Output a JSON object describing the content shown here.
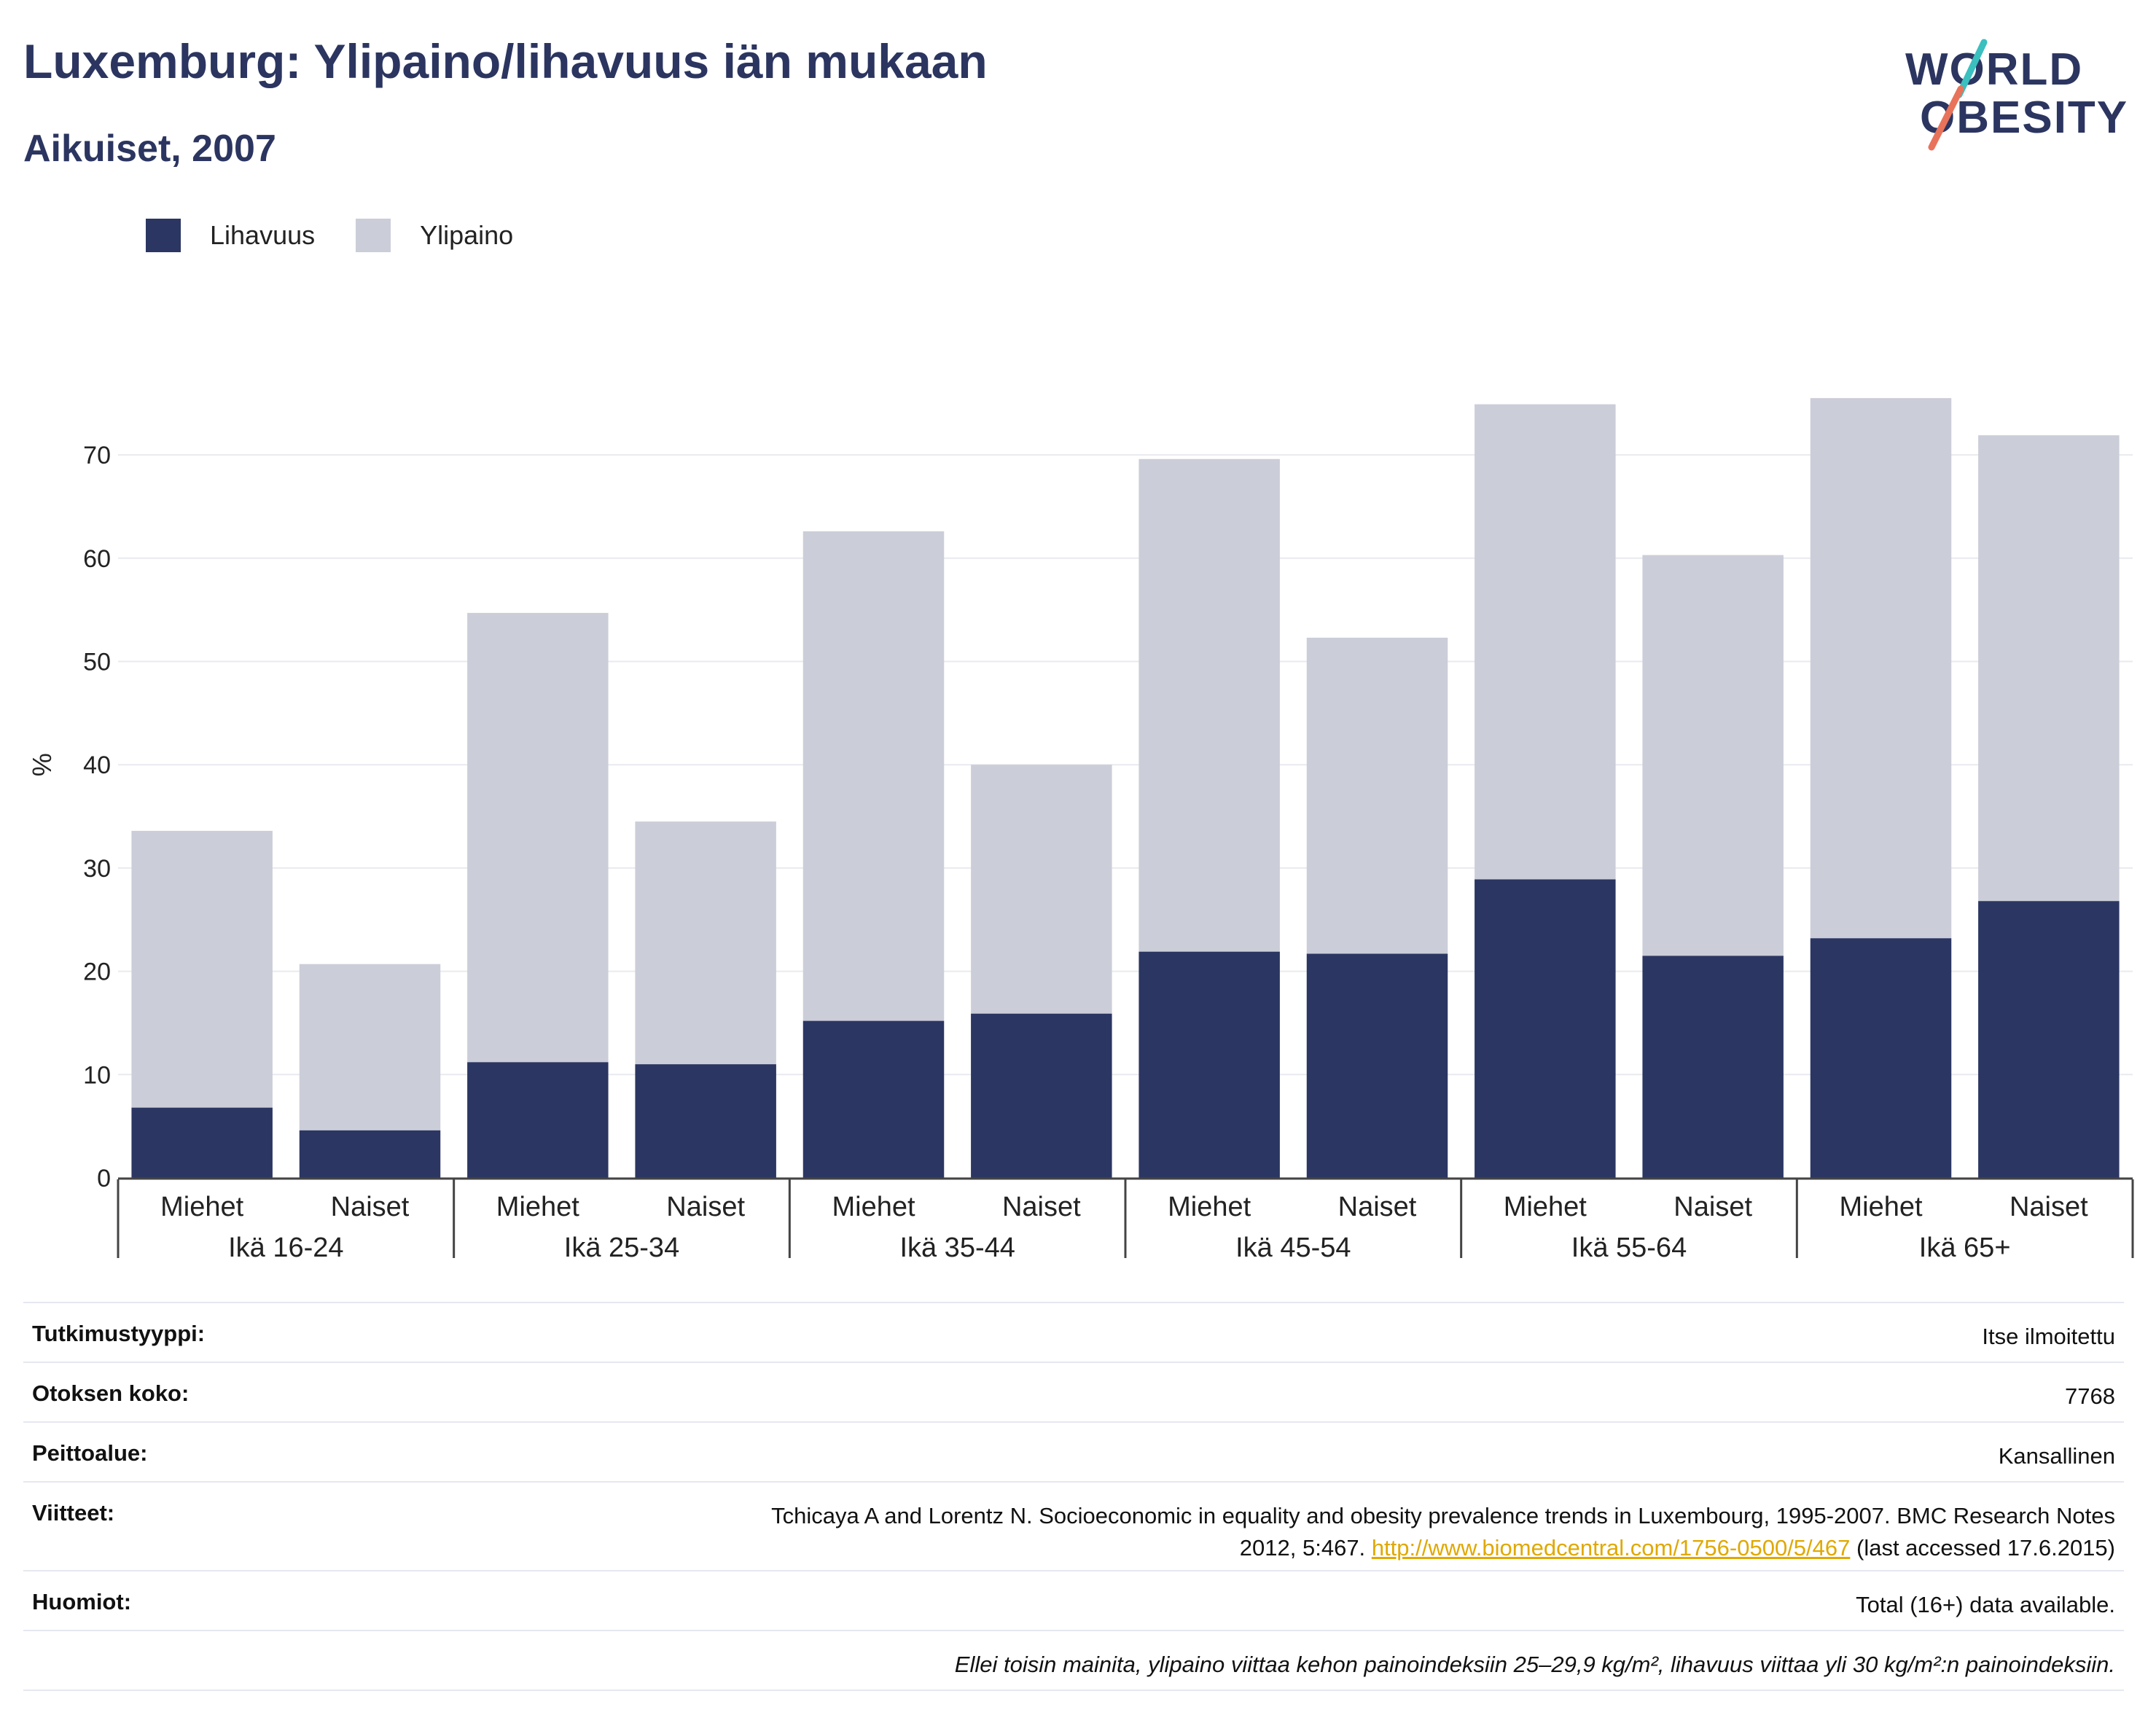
{
  "title": "Luxemburg: Ylipaino/lihavuus iän mukaan",
  "subtitle": "Aikuiset, 2007",
  "logo": {
    "line1": "WORLD",
    "line2": "OBESITY"
  },
  "colors": {
    "obesity": "#2b3662",
    "overweight": "#cbcdd8",
    "title": "#2b3560",
    "link": "#e0a800"
  },
  "legend": [
    {
      "label": "Lihavuus",
      "color": "#2b3662"
    },
    {
      "label": "Ylipaino",
      "color": "#cbcdd8"
    }
  ],
  "chart_data": {
    "type": "bar",
    "stacked": true,
    "ylabel": "%",
    "ylim": [
      0,
      80
    ],
    "yticks": [
      0,
      10,
      20,
      30,
      40,
      50,
      60,
      70
    ],
    "grid": true,
    "legend_position": "top-left",
    "groups": [
      "Ikä 16-24",
      "Ikä 25-34",
      "Ikä 35-44",
      "Ikä 45-54",
      "Ikä 55-64",
      "Ikä 65+"
    ],
    "categories": [
      "Miehet",
      "Naiset",
      "Miehet",
      "Naiset",
      "Miehet",
      "Naiset",
      "Miehet",
      "Naiset",
      "Miehet",
      "Naiset",
      "Miehet",
      "Naiset"
    ],
    "series": [
      {
        "name": "Lihavuus",
        "values": [
          6.8,
          4.6,
          11.2,
          11.0,
          15.2,
          15.9,
          21.9,
          21.7,
          28.9,
          21.5,
          23.2,
          26.8
        ]
      },
      {
        "name": "Ylipaino",
        "values": [
          26.8,
          16.1,
          43.5,
          23.5,
          47.4,
          24.1,
          47.7,
          30.6,
          46.0,
          38.8,
          52.3,
          45.1
        ]
      }
    ]
  },
  "info": [
    {
      "key": "Tutkimustyyppi:",
      "value": "Itse ilmoitettu"
    },
    {
      "key": "Otoksen koko:",
      "value": "7768"
    },
    {
      "key": "Peittoalue:",
      "value": "Kansallinen"
    }
  ],
  "references": {
    "key": "Viitteet:",
    "line1": "Tchicaya A and Lorentz N. Socioeconomic in equality and obesity prevalence trends in Luxembourg, 1995-2007. BMC Research Notes",
    "line2_prefix": "2012, 5:467.",
    "link": "http://www.biomedcentral.com/1756-0500/5/467",
    "line2_suffix": "(last accessed 17.6.2015)"
  },
  "notes": {
    "key": "Huomiot:",
    "value": "Total (16+) data available."
  },
  "footnote": "Ellei toisin mainita, ylipaino viittaa kehon painoindeksiin 25–29,9 kg/m², lihavuus viittaa yli 30 kg/m²:n painoindeksiin."
}
